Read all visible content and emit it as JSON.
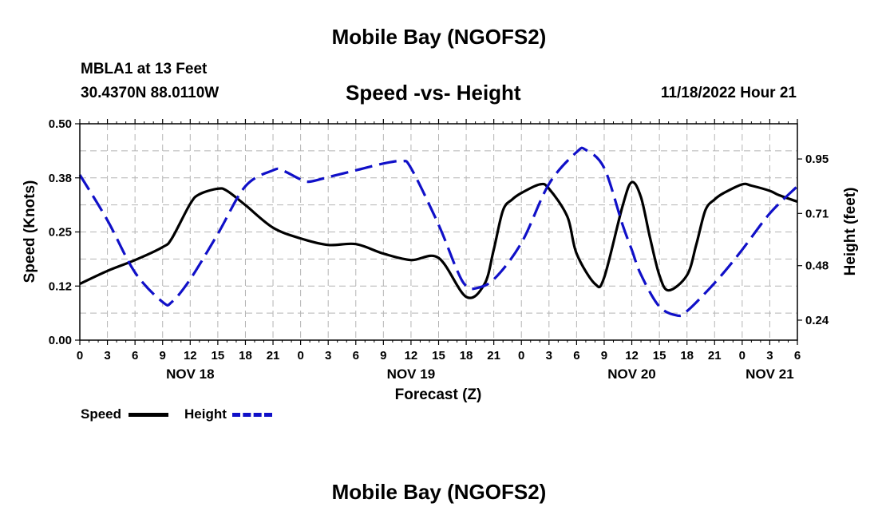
{
  "header": {
    "title": "Mobile Bay (NGOFS2)",
    "station": "MBLA1 at 13 Feet",
    "coords": "30.4370N  88.0110W",
    "subtitle": "Speed -vs- Height",
    "datetime": "11/18/2022 Hour 21",
    "footer_title": "Mobile Bay (NGOFS2)"
  },
  "legend": {
    "speed_label": "Speed",
    "height_label": "Height"
  },
  "colors": {
    "speed": "#000000",
    "height": "#1010c8",
    "grid": "#b4b4b4"
  },
  "chart_data": {
    "type": "line",
    "title": "Speed -vs- Height",
    "xlabel": "Forecast (Z)",
    "ylabel": "Speed (Knots)",
    "y2label": "Height (feet)",
    "xlim": [
      0,
      78
    ],
    "ylim": [
      0,
      0.5
    ],
    "y2lim": [
      0.152,
      1.105
    ],
    "x_ticks": [
      0,
      3,
      6,
      9,
      12,
      15,
      18,
      21,
      24,
      27,
      30,
      33,
      36,
      39,
      42,
      45,
      48,
      51,
      54,
      57,
      60,
      63,
      66,
      69,
      72,
      75,
      78
    ],
    "x_tick_labels": [
      "0",
      "3",
      "6",
      "9",
      "12",
      "15",
      "18",
      "21",
      "0",
      "3",
      "6",
      "9",
      "12",
      "15",
      "18",
      "21",
      "0",
      "3",
      "6",
      "9",
      "12",
      "15",
      "18",
      "21",
      "0",
      "3",
      "6"
    ],
    "y_ticks": [
      0,
      0.125,
      0.25,
      0.375,
      0.5
    ],
    "y_tick_labels": [
      "0.00",
      "0.12",
      "0.25",
      "0.38",
      "0.50"
    ],
    "y2_ticks": [
      0.24,
      0.48,
      0.71,
      0.95
    ],
    "y2_tick_labels": [
      "0.24",
      "0.48",
      "0.71",
      "0.95"
    ],
    "date_labels": [
      {
        "x": 12,
        "label": "NOV 18"
      },
      {
        "x": 36,
        "label": "NOV 19"
      },
      {
        "x": 60,
        "label": "NOV 20"
      },
      {
        "x": 75,
        "label": "NOV 21"
      }
    ],
    "series": [
      {
        "name": "Speed",
        "axis": "left",
        "style": "solid",
        "x": [
          0,
          3,
          6,
          9,
          10,
          12,
          13,
          15,
          16,
          18,
          21,
          24,
          27,
          30,
          33,
          36,
          39,
          42,
          44,
          45,
          46,
          47,
          48,
          50,
          51,
          53,
          54,
          56,
          57,
          59,
          60,
          61,
          62,
          63,
          64,
          66,
          67,
          68,
          69,
          70,
          72,
          73,
          75,
          76,
          78
        ],
        "y": [
          0.13,
          0.16,
          0.185,
          0.215,
          0.235,
          0.315,
          0.337,
          0.35,
          0.345,
          0.312,
          0.26,
          0.235,
          0.22,
          0.222,
          0.2,
          0.185,
          0.19,
          0.1,
          0.13,
          0.21,
          0.3,
          0.325,
          0.34,
          0.36,
          0.35,
          0.285,
          0.2,
          0.13,
          0.145,
          0.31,
          0.365,
          0.33,
          0.235,
          0.15,
          0.115,
          0.15,
          0.22,
          0.3,
          0.325,
          0.34,
          0.36,
          0.357,
          0.345,
          0.335,
          0.32
        ]
      },
      {
        "name": "Height",
        "axis": "right",
        "style": "dashed",
        "x": [
          0,
          3,
          6,
          9,
          10,
          12,
          15,
          18,
          21,
          22,
          24,
          25,
          27,
          30,
          33,
          35,
          36,
          39,
          41,
          42,
          43,
          45,
          48,
          51,
          54,
          55,
          57,
          59,
          60,
          61,
          63,
          65,
          66,
          68,
          70,
          72,
          75,
          78
        ],
        "y": [
          0.88,
          0.68,
          0.45,
          0.32,
          0.32,
          0.42,
          0.62,
          0.83,
          0.9,
          0.9,
          0.86,
          0.85,
          0.87,
          0.9,
          0.93,
          0.94,
          0.91,
          0.66,
          0.46,
          0.39,
          0.38,
          0.42,
          0.58,
          0.84,
          0.98,
          0.99,
          0.91,
          0.66,
          0.55,
          0.44,
          0.3,
          0.26,
          0.28,
          0.36,
          0.45,
          0.55,
          0.71,
          0.83
        ]
      }
    ]
  }
}
